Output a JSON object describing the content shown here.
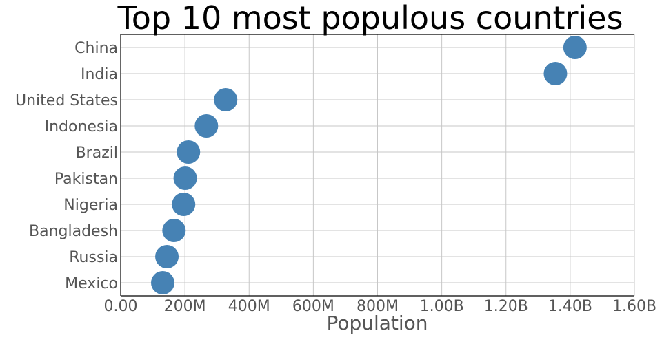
{
  "chart_data": {
    "type": "scatter",
    "title": "Top 10 most populous countries",
    "xlabel": "Population",
    "ylabel": "",
    "xlim": [
      0,
      1600000000
    ],
    "x_ticks": [
      {
        "value": 0,
        "label": "0.00"
      },
      {
        "value": 200000000,
        "label": "200M"
      },
      {
        "value": 400000000,
        "label": "400M"
      },
      {
        "value": 600000000,
        "label": "600M"
      },
      {
        "value": 800000000,
        "label": "800M"
      },
      {
        "value": 1000000000,
        "label": "1.00B"
      },
      {
        "value": 1200000000,
        "label": "1.20B"
      },
      {
        "value": 1400000000,
        "label": "1.40B"
      },
      {
        "value": 1600000000,
        "label": "1.60B"
      }
    ],
    "grid": true,
    "marker_color": "#4682b4",
    "categories": [
      "China",
      "India",
      "United States",
      "Indonesia",
      "Brazil",
      "Pakistan",
      "Nigeria",
      "Bangladesh",
      "Russia",
      "Mexico"
    ],
    "values": [
      1415000000,
      1354000000,
      327000000,
      267000000,
      211000000,
      201000000,
      196000000,
      166000000,
      144000000,
      131000000
    ]
  }
}
